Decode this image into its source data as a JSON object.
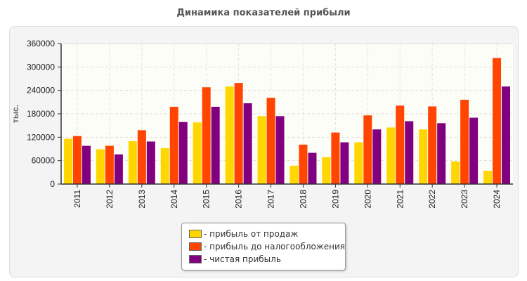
{
  "chart_data": {
    "type": "bar",
    "title": "Динамика показателей прибыли",
    "ylabel": "тыс.",
    "xlabel": "",
    "ylim": [
      0,
      360000
    ],
    "yticks": [
      0,
      60000,
      120000,
      180000,
      240000,
      300000,
      360000
    ],
    "grid": true,
    "legend_position": "bottom",
    "categories": [
      "2011",
      "2012",
      "2013",
      "2014",
      "2015",
      "2016",
      "2017",
      "2018",
      "2019",
      "2020",
      "2021",
      "2022",
      "2023",
      "2024"
    ],
    "series": [
      {
        "name": "- прибыль от продаж",
        "color": "#ffd700",
        "values": [
          116000,
          89000,
          110000,
          92000,
          158000,
          250000,
          174000,
          47000,
          69000,
          107000,
          145000,
          140000,
          58000,
          34000
        ]
      },
      {
        "name": "- прибыль до налогообложения",
        "color": "#ff4500",
        "values": [
          123000,
          98000,
          138000,
          198000,
          248000,
          259000,
          221000,
          101000,
          132000,
          176000,
          201000,
          199000,
          216000,
          323000
        ]
      },
      {
        "name": "- чистая прибыль",
        "color": "#800080",
        "values": [
          98000,
          76000,
          109000,
          159000,
          198000,
          207000,
          174000,
          80000,
          107000,
          140000,
          161000,
          156000,
          170000,
          250000
        ]
      }
    ]
  }
}
